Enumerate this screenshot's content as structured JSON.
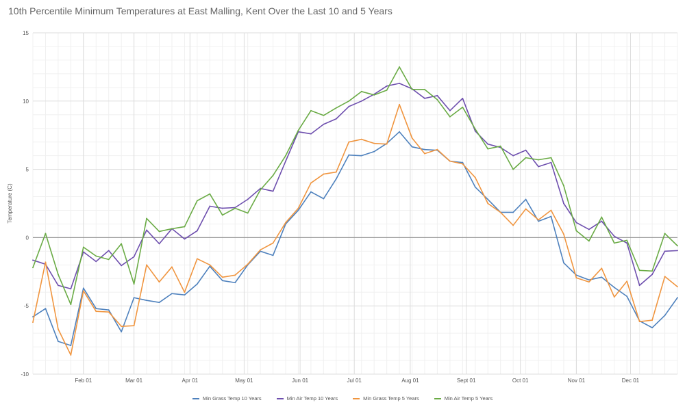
{
  "chart_data": {
    "type": "line",
    "title": "10th Percentile Minimum Temperatures at East Malling, Kent Over the Last 10 and 5 Years",
    "xlabel": "",
    "ylabel": "Temperature (C)",
    "ylim": [
      -10,
      15
    ],
    "yticks": [
      15,
      10,
      5,
      0,
      -5,
      -10
    ],
    "x_unit": "day of year",
    "xlim": [
      4,
      361
    ],
    "x_start_day": 4,
    "x_step_days": 7,
    "xticks": [
      {
        "day": 32,
        "label": "Feb 01"
      },
      {
        "day": 60,
        "label": "Mar 01"
      },
      {
        "day": 91,
        "label": "Apr 01"
      },
      {
        "day": 121,
        "label": "May 01"
      },
      {
        "day": 152,
        "label": "Jun 01"
      },
      {
        "day": 182,
        "label": "Jul 01"
      },
      {
        "day": 213,
        "label": "Aug 01"
      },
      {
        "day": 244,
        "label": "Sept 01"
      },
      {
        "day": 274,
        "label": "Oct 01"
      },
      {
        "day": 305,
        "label": "Nov 01"
      },
      {
        "day": 335,
        "label": "Dec 01"
      }
    ],
    "grid": true,
    "legend_position": "bottom",
    "series": [
      {
        "name": "Min Grass Temp 10 Years",
        "color": "#4e81bd",
        "values": [
          -5.8,
          -5.2,
          -7.6,
          -7.9,
          -3.7,
          -5.2,
          -5.3,
          -6.9,
          -4.4,
          -4.6,
          -4.75,
          -4.1,
          -4.2,
          -3.4,
          -2.1,
          -3.15,
          -3.3,
          -2.0,
          -1.0,
          -1.3,
          1.0,
          2.0,
          3.35,
          2.85,
          4.3,
          6.05,
          6.0,
          6.3,
          6.9,
          7.75,
          6.65,
          6.45,
          6.4,
          5.6,
          5.5,
          3.7,
          2.8,
          1.85,
          1.85,
          2.8,
          1.2,
          1.55,
          -1.85,
          -2.75,
          -3.1,
          -2.9,
          -3.65,
          -4.3,
          -6.1,
          -6.6,
          -5.7,
          -4.4
        ]
      },
      {
        "name": "Min Air Temp 10 Years",
        "color": "#6e4fae",
        "values": [
          -1.65,
          -1.95,
          -3.5,
          -3.75,
          -1.05,
          -1.75,
          -0.95,
          -2.05,
          -1.4,
          0.55,
          -0.45,
          0.65,
          -0.1,
          0.5,
          2.3,
          2.15,
          2.2,
          2.8,
          3.6,
          3.4,
          5.6,
          7.75,
          7.6,
          8.3,
          8.7,
          9.6,
          10.0,
          10.5,
          11.1,
          11.3,
          10.9,
          10.2,
          10.4,
          9.3,
          10.2,
          7.8,
          6.85,
          6.6,
          6.0,
          6.4,
          5.2,
          5.5,
          2.5,
          1.1,
          0.6,
          1.2,
          0.1,
          -0.4,
          -3.5,
          -2.7,
          -1.0,
          -0.95
        ]
      },
      {
        "name": "Min Grass Temp 5 Years",
        "color": "#f0953f",
        "values": [
          -6.2,
          -1.8,
          -6.7,
          -8.6,
          -3.9,
          -5.4,
          -5.45,
          -6.5,
          -6.45,
          -2.0,
          -3.25,
          -2.15,
          -4.0,
          -1.55,
          -2.0,
          -2.9,
          -2.75,
          -1.95,
          -0.9,
          -0.4,
          1.1,
          2.15,
          4.0,
          4.65,
          4.8,
          7.0,
          7.2,
          6.9,
          6.85,
          9.75,
          7.3,
          6.15,
          6.45,
          5.6,
          5.4,
          4.4,
          2.5,
          1.85,
          0.9,
          2.1,
          1.3,
          2.0,
          0.25,
          -2.95,
          -3.25,
          -2.25,
          -4.35,
          -3.2,
          -6.15,
          -6.05,
          -2.85,
          -3.6
        ]
      },
      {
        "name": "Min Air Temp 5 Years",
        "color": "#6aab45",
        "values": [
          -2.2,
          0.3,
          -2.7,
          -4.9,
          -0.7,
          -1.35,
          -1.6,
          -0.45,
          -3.4,
          1.4,
          0.45,
          0.65,
          0.8,
          2.7,
          3.2,
          1.65,
          2.15,
          1.8,
          3.5,
          4.55,
          6.0,
          7.85,
          9.3,
          8.95,
          9.5,
          10.0,
          10.7,
          10.45,
          10.8,
          12.5,
          10.85,
          10.85,
          10.1,
          8.85,
          9.55,
          7.95,
          6.5,
          6.7,
          5.0,
          5.85,
          5.7,
          5.85,
          3.8,
          0.5,
          -0.25,
          1.5,
          -0.4,
          -0.2,
          -2.4,
          -2.45,
          0.3,
          -0.6
        ]
      }
    ]
  }
}
